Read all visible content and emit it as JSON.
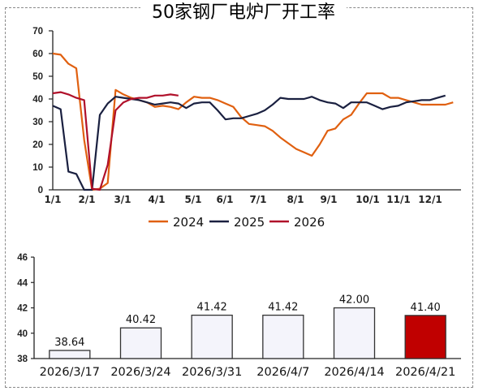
{
  "title": "50家钢厂电炉厂开工率",
  "colors": {
    "s2024": "#e06010",
    "s2025": "#1a2040",
    "s2026": "#b0102a",
    "bar_default_fill": "#f4f4fb",
    "bar_highlight_fill": "#c00000",
    "bar_stroke": "#333333"
  },
  "chart_data": [
    {
      "type": "line",
      "title": "50家钢厂电炉厂开工率",
      "xlabel": "",
      "ylabel": "",
      "ylim": [
        0,
        70
      ],
      "yticks": [
        0,
        10,
        20,
        30,
        40,
        50,
        60,
        70
      ],
      "xticks": [
        "1/1",
        "2/1",
        "3/1",
        "4/1",
        "5/1",
        "6/1",
        "7/1",
        "8/1",
        "9/1",
        "10/1",
        "11/1",
        "12/1"
      ],
      "x_unit": "week of year (1..52)",
      "legend_position": "bottom",
      "grid": false,
      "series": [
        {
          "name": "2024",
          "values": [
            60,
            59.5,
            55.5,
            53.5,
            22,
            0,
            0.5,
            3,
            44,
            42,
            40.5,
            39.5,
            38.5,
            36.5,
            37,
            36.5,
            35.5,
            38.5,
            41,
            40.5,
            40.5,
            39.5,
            38,
            36.5,
            32,
            29,
            28.5,
            28,
            26,
            23,
            20.5,
            18,
            16.5,
            15,
            20,
            26,
            27,
            31,
            33,
            38,
            42.5,
            42.5,
            42.5,
            40.5,
            40.5,
            39.5,
            38.5,
            37.5,
            37.5,
            37.5,
            37.5,
            38.5
          ]
        },
        {
          "name": "2025",
          "values": [
            37,
            35.5,
            8,
            7,
            0,
            0,
            33,
            38,
            41,
            40.5,
            40,
            39.5,
            38.5,
            37.5,
            38,
            38.5,
            38,
            36,
            38,
            38.5,
            38.5,
            35,
            31,
            31.5,
            31.5,
            32.5,
            33.5,
            35,
            37.5,
            40.5,
            40,
            40,
            40,
            41,
            39.5,
            38.5,
            38,
            36,
            38.5,
            38.5,
            38.5,
            37,
            35.5,
            36.5,
            37,
            38.5,
            39,
            39.5,
            39.5,
            40.5,
            41.5
          ]
        },
        {
          "name": "2026",
          "values": [
            42.5,
            43,
            42,
            40.5,
            39.5,
            0.5,
            0,
            11,
            35,
            38.5,
            40,
            40.5,
            40.5,
            41.5,
            41.5,
            42,
            41.5
          ]
        }
      ]
    },
    {
      "type": "bar",
      "title": "",
      "xlabel": "",
      "ylabel": "",
      "ylim": [
        38,
        46
      ],
      "yticks": [
        38,
        40,
        42,
        44,
        46
      ],
      "categories": [
        "2026/3/17",
        "2026/3/24",
        "2026/3/31",
        "2026/4/7",
        "2026/4/14",
        "2026/4/21"
      ],
      "values": [
        38.64,
        40.42,
        41.42,
        41.42,
        42.0,
        41.4
      ],
      "labels": [
        "38.64",
        "40.42",
        "41.42",
        "41.42",
        "42.00",
        "41.40"
      ],
      "highlight_index": 5,
      "grid": false
    }
  ],
  "legend": [
    {
      "label": "2024"
    },
    {
      "label": "2025"
    },
    {
      "label": "2026"
    }
  ]
}
